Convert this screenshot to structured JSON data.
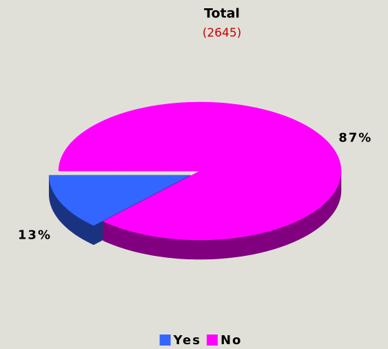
{
  "chart_data": {
    "type": "pie",
    "title": "Total",
    "subtitle": "(2645)",
    "categories": [
      "Yes",
      "No"
    ],
    "values": [
      13,
      87
    ],
    "value_labels": [
      "13%",
      "87%"
    ],
    "colors": [
      "#3366ff",
      "#ff00ff"
    ],
    "legend": "bottom"
  }
}
